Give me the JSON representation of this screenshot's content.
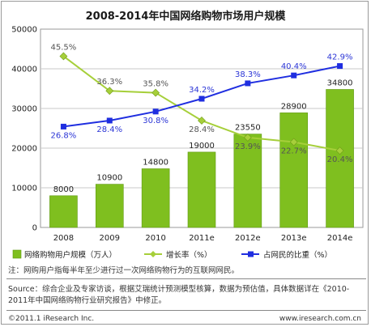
{
  "chart_data": {
    "type": "bar",
    "title": "2008-2014年中国网络购物市场用户规模",
    "categories": [
      "2008",
      "2009",
      "2010",
      "2011e",
      "2012e",
      "2013e",
      "2014e"
    ],
    "ylim": [
      0,
      50000
    ],
    "yticks": [
      "0",
      "10000",
      "20000",
      "30000",
      "40000",
      "50000"
    ],
    "series": [
      {
        "name": "网络购物用户规模（万人）",
        "kind": "bar",
        "values": [
          8000,
          10900,
          14800,
          19000,
          23550,
          28900,
          34800
        ],
        "labels": [
          "8000",
          "10900",
          "14800",
          "19000",
          "23550",
          "28900",
          "34800"
        ],
        "color": "#7fbf1f"
      },
      {
        "name": "增长率（%）",
        "kind": "line",
        "values": [
          45.5,
          36.3,
          35.8,
          28.4,
          23.9,
          22.7,
          20.4
        ],
        "labels": [
          "45.5%",
          "36.3%",
          "35.8%",
          "28.4%",
          "23.9%",
          "22.7%",
          "20.4%"
        ],
        "color": "#a6cf3a"
      },
      {
        "name": "占网民的比重（%）",
        "kind": "line",
        "values": [
          26.8,
          28.4,
          30.8,
          34.2,
          38.3,
          40.4,
          42.9
        ],
        "labels": [
          "26.8%",
          "28.4%",
          "30.8%",
          "34.2%",
          "38.3%",
          "40.4%",
          "42.9%"
        ],
        "color": "#1f2ee0"
      }
    ],
    "grid": true,
    "legend_position": "bottom"
  },
  "note": "注：网购用户指每半年至少进行过一次网络购物行为的互联网网民。",
  "source_line1": "Source：综合企业及专家访谈，根据艾瑞统计预测模型核算，数据为预估值，具体数据详在《2010-",
  "source_line2": "2011年中国网络购物行业研究报告》中修正。",
  "copyright": "©2011.1 iResearch Inc.",
  "website": "www.iresearch.com.cn"
}
